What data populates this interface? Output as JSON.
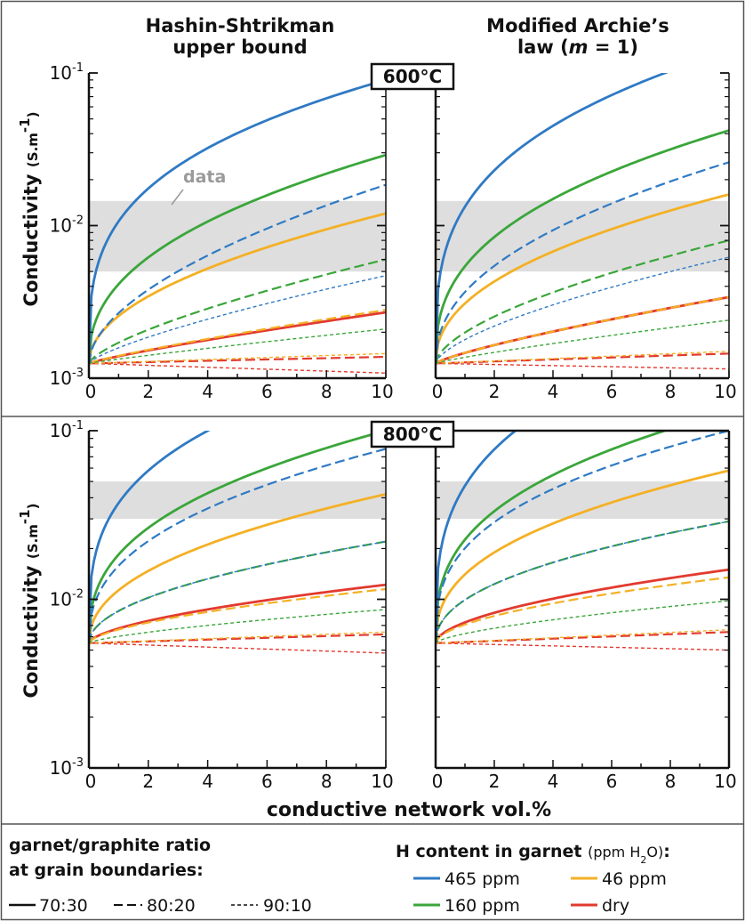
{
  "column_titles": {
    "left": [
      "Hashin-Shtrikman",
      "upper bound"
    ],
    "right_line1": "Modified Archie’s",
    "right_line2_pre": "law (",
    "right_line2_var": "m",
    "right_line2_post": " = 1)"
  },
  "ylabel": "Conductivity",
  "ylabel_unit_pre": "(S.m",
  "ylabel_unit_exp": "-1",
  "ylabel_unit_post": ")",
  "xlabel": "conductive network vol.%",
  "annotation": "data",
  "x_ticks": [
    "0",
    "2",
    "4",
    "6",
    "8",
    "10"
  ],
  "y_tick_base": "10",
  "y_tick_exps": [
    "-3",
    "-2",
    "-1"
  ],
  "legend": {
    "ratio_title_1": "garnet/graphite ratio",
    "ratio_title_2": "at grain boundaries:",
    "ratio_items": [
      "70:30",
      "80:20",
      "90:10"
    ],
    "h_title_pre": "H content in garnet ",
    "h_title_unit_pre": "(ppm H",
    "h_title_unit_sub": "2",
    "h_title_unit_post": "O)",
    "h_title_colon": ":",
    "h_items": [
      "465 ppm",
      "46 ppm",
      "160 ppm",
      "dry"
    ]
  },
  "colors": {
    "465 ppm": "#2f7ac4",
    "160 ppm": "#3aa63a",
    "46 ppm": "#f4b025",
    "dry": "#e23a2f",
    "data_band": "#dedede"
  },
  "chart_data": [
    {
      "type": "line",
      "temperature": "600°C",
      "model": "Hashin-Shtrikman upper bound",
      "xlim": [
        0,
        10
      ],
      "ylim": [
        0.001,
        0.1
      ],
      "yscale": "log",
      "x": [
        0,
        10
      ],
      "data_band": [
        0.005,
        0.0145
      ],
      "series": [
        {
          "name": "465 ppm 70:30",
          "color": "465 ppm",
          "style": "solid",
          "y0": 0.00125,
          "y10": 0.09,
          "p": 0.3
        },
        {
          "name": "465 ppm 80:20",
          "color": "465 ppm",
          "style": "long",
          "y0": 0.00125,
          "y10": 0.0185,
          "p": 0.55
        },
        {
          "name": "465 ppm 90:10",
          "color": "465 ppm",
          "style": "short",
          "y0": 0.00125,
          "y10": 0.0047,
          "p": 0.75
        },
        {
          "name": "160 ppm 70:30",
          "color": "160 ppm",
          "style": "solid",
          "y0": 0.00125,
          "y10": 0.029,
          "p": 0.42
        },
        {
          "name": "160 ppm 80:20",
          "color": "160 ppm",
          "style": "long",
          "y0": 0.00125,
          "y10": 0.006,
          "p": 0.7
        },
        {
          "name": "160 ppm 90:10",
          "color": "160 ppm",
          "style": "short",
          "y0": 0.00125,
          "y10": 0.0021,
          "p": 0.9
        },
        {
          "name": "46 ppm 70:30",
          "color": "46 ppm",
          "style": "solid",
          "y0": 0.00125,
          "y10": 0.012,
          "p": 0.5
        },
        {
          "name": "46 ppm 80:20",
          "color": "46 ppm",
          "style": "long",
          "y0": 0.00125,
          "y10": 0.0028,
          "p": 0.85
        },
        {
          "name": "46 ppm 90:10",
          "color": "46 ppm",
          "style": "short",
          "y0": 0.00125,
          "y10": 0.00145,
          "p": 1
        },
        {
          "name": "dry 70:30",
          "color": "dry",
          "style": "solid",
          "y0": 0.00125,
          "y10": 0.0027,
          "p": 0.85
        },
        {
          "name": "dry 80:20",
          "color": "dry",
          "style": "long",
          "y0": 0.00125,
          "y10": 0.00138,
          "p": 1
        },
        {
          "name": "dry 90:10",
          "color": "dry",
          "style": "short",
          "y0": 0.00125,
          "y10": 0.00108,
          "p": 1
        }
      ]
    },
    {
      "type": "line",
      "temperature": "600°C",
      "model": "Modified Archie’s law (m = 1)",
      "xlim": [
        0,
        10
      ],
      "ylim": [
        0.001,
        0.1
      ],
      "yscale": "log",
      "x": [
        0,
        10
      ],
      "data_band": [
        0.005,
        0.0145
      ],
      "series": [
        {
          "name": "465 ppm 70:30",
          "color": "465 ppm",
          "style": "solid",
          "y0": 0.00125,
          "y10": 0.14,
          "p": 0.3
        },
        {
          "name": "465 ppm 80:20",
          "color": "465 ppm",
          "style": "long",
          "y0": 0.00125,
          "y10": 0.026,
          "p": 0.45
        },
        {
          "name": "465 ppm 90:10",
          "color": "465 ppm",
          "style": "short",
          "y0": 0.00125,
          "y10": 0.0062,
          "p": 0.65
        },
        {
          "name": "160 ppm 70:30",
          "color": "160 ppm",
          "style": "solid",
          "y0": 0.00125,
          "y10": 0.042,
          "p": 0.38
        },
        {
          "name": "160 ppm 80:20",
          "color": "160 ppm",
          "style": "long",
          "y0": 0.00125,
          "y10": 0.008,
          "p": 0.6
        },
        {
          "name": "160 ppm 90:10",
          "color": "160 ppm",
          "style": "short",
          "y0": 0.00125,
          "y10": 0.0024,
          "p": 0.85
        },
        {
          "name": "46 ppm 70:30",
          "color": "46 ppm",
          "style": "solid",
          "y0": 0.00125,
          "y10": 0.016,
          "p": 0.45
        },
        {
          "name": "46 ppm 80:20",
          "color": "46 ppm",
          "style": "long",
          "y0": 0.00125,
          "y10": 0.0034,
          "p": 0.8
        },
        {
          "name": "46 ppm 90:10",
          "color": "46 ppm",
          "style": "short",
          "y0": 0.00125,
          "y10": 0.0015,
          "p": 1
        },
        {
          "name": "dry 70:30",
          "color": "dry",
          "style": "solid",
          "y0": 0.00125,
          "y10": 0.0034,
          "p": 0.8
        },
        {
          "name": "dry 80:20",
          "color": "dry",
          "style": "long",
          "y0": 0.00125,
          "y10": 0.00145,
          "p": 1
        },
        {
          "name": "dry 90:10",
          "color": "dry",
          "style": "short",
          "y0": 0.00125,
          "y10": 0.00115,
          "p": 1
        }
      ]
    },
    {
      "type": "line",
      "temperature": "800°C",
      "model": "Hashin-Shtrikman upper bound",
      "xlim": [
        0,
        10
      ],
      "ylim": [
        0.001,
        0.1
      ],
      "yscale": "log",
      "x": [
        0,
        10
      ],
      "data_band": [
        0.03,
        0.05
      ],
      "series": [
        {
          "name": "465 ppm 70:30",
          "color": "465 ppm",
          "style": "solid",
          "y0": 0.0055,
          "y10": 0.25,
          "p": 0.3
        },
        {
          "name": "465 ppm 80:20",
          "color": "465 ppm",
          "style": "long",
          "y0": 0.0055,
          "y10": 0.078,
          "p": 0.4
        },
        {
          "name": "465 ppm 90:10",
          "color": "465 ppm",
          "style": "short",
          "y0": 0.0055,
          "y10": 0.022,
          "p": 0.5
        },
        {
          "name": "160 ppm 70:30",
          "color": "160 ppm",
          "style": "solid",
          "y0": 0.0055,
          "y10": 0.1,
          "p": 0.38
        },
        {
          "name": "160 ppm 80:20",
          "color": "160 ppm",
          "style": "long",
          "y0": 0.0055,
          "y10": 0.022,
          "p": 0.5
        },
        {
          "name": "160 ppm 90:10",
          "color": "160 ppm",
          "style": "short",
          "y0": 0.0055,
          "y10": 0.0087,
          "p": 0.7
        },
        {
          "name": "46 ppm 70:30",
          "color": "46 ppm",
          "style": "solid",
          "y0": 0.0055,
          "y10": 0.042,
          "p": 0.45
        },
        {
          "name": "46 ppm 80:20",
          "color": "46 ppm",
          "style": "long",
          "y0": 0.0055,
          "y10": 0.0115,
          "p": 0.6
        },
        {
          "name": "46 ppm 90:10",
          "color": "46 ppm",
          "style": "short",
          "y0": 0.0055,
          "y10": 0.0064,
          "p": 1
        },
        {
          "name": "dry 70:30",
          "color": "dry",
          "style": "solid",
          "y0": 0.0055,
          "y10": 0.0122,
          "p": 0.6
        },
        {
          "name": "dry 80:20",
          "color": "dry",
          "style": "long",
          "y0": 0.0055,
          "y10": 0.0062,
          "p": 1
        },
        {
          "name": "dry 90:10",
          "color": "dry",
          "style": "short",
          "y0": 0.0055,
          "y10": 0.0048,
          "p": 1
        }
      ]
    },
    {
      "type": "line",
      "temperature": "800°C",
      "model": "Modified Archie’s law (m = 1)",
      "xlim": [
        0,
        10
      ],
      "ylim": [
        0.001,
        0.1
      ],
      "yscale": "log",
      "x": [
        0,
        10
      ],
      "data_band": [
        0.03,
        0.05
      ],
      "series": [
        {
          "name": "465 ppm 70:30",
          "color": "465 ppm",
          "style": "solid",
          "y0": 0.0055,
          "y10": 0.4,
          "p": 0.3
        },
        {
          "name": "465 ppm 80:20",
          "color": "465 ppm",
          "style": "long",
          "y0": 0.0055,
          "y10": 0.1,
          "p": 0.35
        },
        {
          "name": "465 ppm 90:10",
          "color": "465 ppm",
          "style": "short",
          "y0": 0.0055,
          "y10": 0.029,
          "p": 0.45
        },
        {
          "name": "160 ppm 70:30",
          "color": "160 ppm",
          "style": "solid",
          "y0": 0.0055,
          "y10": 0.13,
          "p": 0.35
        },
        {
          "name": "160 ppm 80:20",
          "color": "160 ppm",
          "style": "long",
          "y0": 0.0055,
          "y10": 0.029,
          "p": 0.45
        },
        {
          "name": "160 ppm 90:10",
          "color": "160 ppm",
          "style": "short",
          "y0": 0.0055,
          "y10": 0.0098,
          "p": 0.65
        },
        {
          "name": "46 ppm 70:30",
          "color": "46 ppm",
          "style": "solid",
          "y0": 0.0055,
          "y10": 0.058,
          "p": 0.4
        },
        {
          "name": "46 ppm 80:20",
          "color": "46 ppm",
          "style": "long",
          "y0": 0.0055,
          "y10": 0.0135,
          "p": 0.55
        },
        {
          "name": "46 ppm 90:10",
          "color": "46 ppm",
          "style": "short",
          "y0": 0.0055,
          "y10": 0.0066,
          "p": 1
        },
        {
          "name": "dry 70:30",
          "color": "dry",
          "style": "solid",
          "y0": 0.0055,
          "y10": 0.015,
          "p": 0.55
        },
        {
          "name": "dry 80:20",
          "color": "dry",
          "style": "long",
          "y0": 0.0055,
          "y10": 0.0064,
          "p": 1
        },
        {
          "name": "dry 90:10",
          "color": "dry",
          "style": "short",
          "y0": 0.0055,
          "y10": 0.005,
          "p": 1
        }
      ]
    }
  ]
}
